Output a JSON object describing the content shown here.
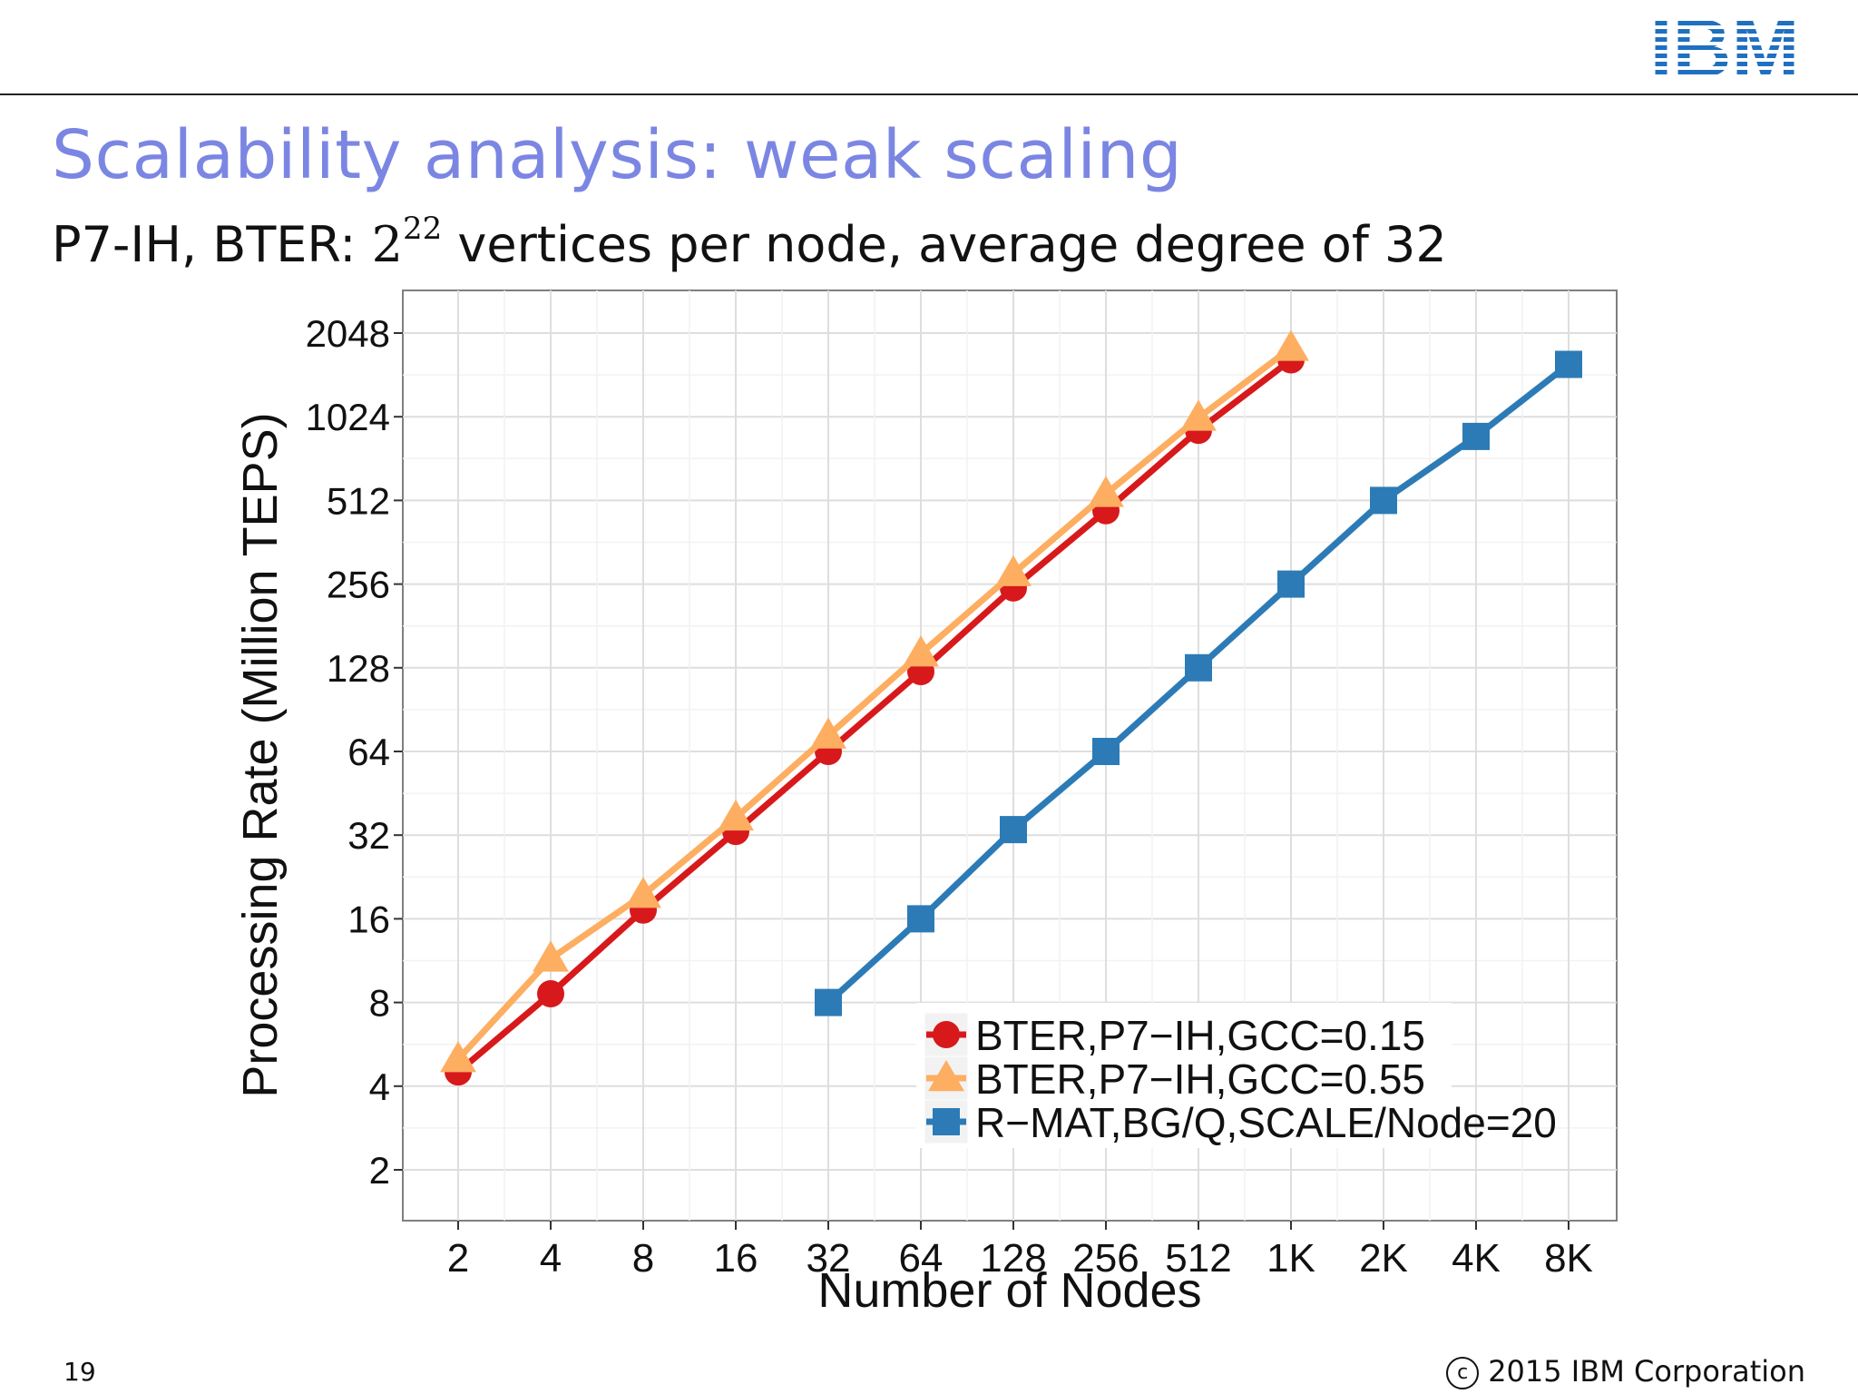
{
  "header": {
    "logo_text": "IBM"
  },
  "slide": {
    "title": "Scalability analysis: weak scaling",
    "subtitle_prefix": "P7-IH, BTER: ",
    "subtitle_base": "2",
    "subtitle_exp": "22",
    "subtitle_suffix": " vertices per node, average degree of 32"
  },
  "footer": {
    "page_number": "19",
    "copyright_symbol": "c",
    "copyright": "2015 IBM Corporation"
  },
  "colors": {
    "title": "#7b86e3",
    "red": "#d7191c",
    "orange": "#fdae61",
    "blue": "#2c7bb6"
  },
  "chart_data": {
    "type": "line",
    "title": "",
    "xlabel": "Number of Nodes",
    "ylabel": "Processing Rate (Million TEPS)",
    "y_scale": "log2",
    "ylim": [
      2,
      2048
    ],
    "categories": [
      "2",
      "4",
      "8",
      "16",
      "32",
      "64",
      "128",
      "256",
      "512",
      "1K",
      "2K",
      "4K",
      "8K"
    ],
    "y_ticks": [
      2,
      4,
      8,
      16,
      32,
      64,
      128,
      256,
      512,
      1024,
      2048
    ],
    "legend_position": "bottom-right",
    "series": [
      {
        "name": "BTER,P7−IH,GCC=0.15",
        "marker": "circle",
        "color": "#d7191c",
        "values": [
          4.5,
          8.6,
          17.2,
          33,
          64,
          124,
          248,
          470,
          915,
          1640,
          null,
          null,
          null
        ]
      },
      {
        "name": "BTER,P7−IH,GCC=0.55",
        "marker": "triangle",
        "color": "#fdae61",
        "values": [
          5,
          11.5,
          19.5,
          37,
          73,
          144,
          280,
          540,
          1015,
          1810,
          null,
          null,
          null
        ]
      },
      {
        "name": "R−MAT,BG/Q,SCALE/Node=20",
        "marker": "square",
        "color": "#2c7bb6",
        "values": [
          null,
          null,
          null,
          null,
          8,
          16,
          33.5,
          64,
          128,
          256,
          512,
          870,
          1580
        ]
      }
    ]
  }
}
